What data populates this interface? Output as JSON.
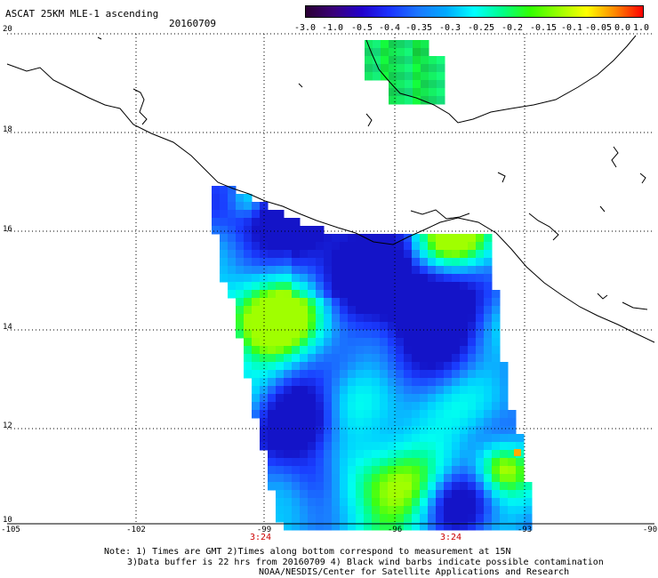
{
  "header": {
    "title": "ASCAT 25KM MLE-1 ascending",
    "date": "20160709"
  },
  "legend": {
    "labels": [
      "-3.0",
      "-1.0",
      "-0.5",
      "-0.4",
      "-0.35",
      "-0.3",
      "-0.25",
      "-0.2",
      "-0.15",
      "-0.1",
      "-0.05",
      "0.0",
      "1.0"
    ],
    "colors": [
      "#2a0033",
      "#3a007a",
      "#2200cc",
      "#1a33ff",
      "#1a77ff",
      "#00aaff",
      "#00ffff",
      "#00ff88",
      "#33ff00",
      "#99ff00",
      "#ffff00",
      "#ff8800",
      "#ff0000"
    ]
  },
  "axes": {
    "lat_labels": [
      "20",
      "18",
      "16",
      "14",
      "12",
      "10"
    ],
    "lon_labels": [
      "-105",
      "-102",
      "-99",
      "-96",
      "-93",
      "-90"
    ],
    "time_labels": [
      "3:24",
      "3:24"
    ]
  },
  "notes": {
    "line1": "Note: 1) Times are GMT 2)Times along bottom correspond to measurement at 15N",
    "line2": "3)Data buffer is 22 hrs from 20160709 4) Black wind barbs indicate possible contamination",
    "line3": "NOAA/NESDIS/Center for Satellite Applications and Research"
  },
  "map": {
    "lon_range": [
      -105,
      -90
    ],
    "lat_range": [
      10,
      20
    ],
    "grid": true,
    "coastline": true
  }
}
